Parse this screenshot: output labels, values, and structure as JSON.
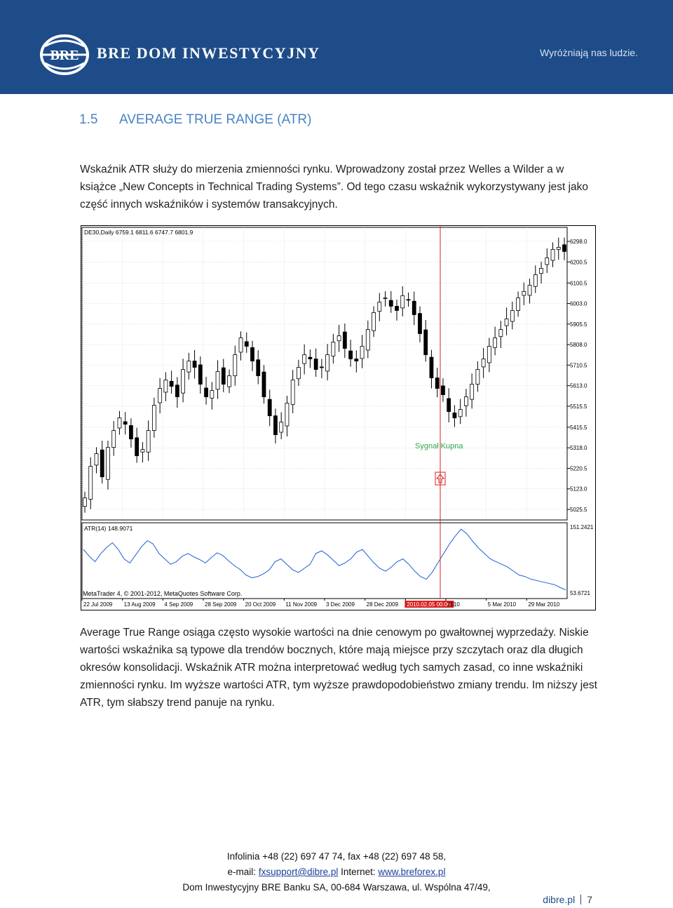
{
  "header": {
    "brand": "BRE DOM INWESTYCYJNY",
    "logo_text": "BRE",
    "tagline": "Wyróżniają nas ludzie."
  },
  "section": {
    "number": "1.5",
    "title": "AVERAGE TRUE RANGE (ATR)"
  },
  "intro_paragraph": "Wskaźnik ATR służy do mierzenia zmienności rynku. Wprowadzony został przez Welles a Wilder a w książce „New Concepts in Technical Trading Systems”. Od tego czasu wskaźnik wykorzystywany jest jako część innych wskaźników i systemów transakcyjnych.",
  "chart_data": {
    "type": "line",
    "title": "DE30,Daily  6759.1 6811.6 6747.7 6801.9",
    "price_axis_ticks": [
      "6298.0",
      "6200.5",
      "6100.5",
      "6003.0",
      "5905.5",
      "5808.0",
      "5710.5",
      "5613.0",
      "5515.5",
      "5415.5",
      "5318.0",
      "5220.5",
      "5123.0",
      "5025.5"
    ],
    "price_ylim": [
      5025.5,
      6298.0
    ],
    "indicator_label": "ATR(14) 148.9071",
    "indicator_ticks": [
      "151.2421",
      "53.6721"
    ],
    "indicator_ylim": [
      53.6721,
      151.2421
    ],
    "x_ticks": [
      "22 Jul 2009",
      "13 Aug 2009",
      "4 Sep 2009",
      "28 Sep 2009",
      "20 Oct 2009",
      "11 Nov 2009",
      "3 Dec 2009",
      "28 Dec 2009",
      "2010.02.05 00:00",
      "2010",
      "5 Mar 2010",
      "29 Mar 2010"
    ],
    "annotation": "Sygnał Kupna",
    "copyright": "MetaTrader 4, © 2001-2012, MetaQuotes Software Corp.",
    "grid": true,
    "series": [
      {
        "name": "DE30,Daily",
        "values": [
          5080,
          5230,
          5290,
          5180,
          5320,
          5400,
          5460,
          5430,
          5360,
          5280,
          5310,
          5400,
          5520,
          5600,
          5640,
          5610,
          5560,
          5690,
          5730,
          5700,
          5620,
          5560,
          5590,
          5680,
          5620,
          5660,
          5760,
          5840,
          5800,
          5730,
          5660,
          5560,
          5470,
          5380,
          5440,
          5530,
          5640,
          5700,
          5760,
          5740,
          5690,
          5700,
          5760,
          5820,
          5850,
          5790,
          5740,
          5730,
          5800,
          5880,
          5960,
          6010,
          6030,
          5990,
          5970,
          6040,
          6020,
          5950,
          5860,
          5760,
          5650,
          5600,
          5570,
          5490,
          5460,
          5500,
          5560,
          5620,
          5690,
          5740,
          5800,
          5840,
          5880,
          5930,
          5970,
          6030,
          6060,
          6090,
          6140,
          6170,
          6220,
          6260,
          6270,
          6250
        ]
      },
      {
        "name": "ATR(14)",
        "values": [
          118,
          108,
          100,
          112,
          121,
          128,
          118,
          104,
          98,
          110,
          122,
          131,
          126,
          112,
          104,
          96,
          100,
          108,
          112,
          107,
          103,
          98,
          106,
          113,
          109,
          101,
          94,
          88,
          80,
          76,
          78,
          82,
          88,
          100,
          104,
          96,
          88,
          84,
          90,
          96,
          112,
          116,
          110,
          102,
          94,
          98,
          104,
          114,
          118,
          108,
          98,
          90,
          86,
          92,
          100,
          104,
          96,
          86,
          78,
          74,
          84,
          98,
          112,
          126,
          138,
          148,
          141,
          130,
          120,
          112,
          104,
          100,
          96,
          92,
          86,
          80,
          78,
          74,
          72,
          70,
          68,
          66,
          62,
          58
        ]
      }
    ]
  },
  "body_paragraph": "Average True Range osiąga często wysokie wartości na dnie cenowym po gwałtownej wyprzedaży. Niskie wartości wskaźnika są typowe dla trendów bocznych, które mają miejsce przy szczytach oraz dla długich okresów konsolidacji. Wskaźnik ATR można interpretować według tych samych zasad, co inne wskaźniki zmienności rynku. Im wyższe wartości ATR, tym wyższe prawdopodobieństwo zmiany trendu. Im niższy jest ATR, tym słabszy trend panuje na rynku.",
  "footer": {
    "line1": "Infolinia +48 (22) 697 47 74, fax +48 (22) 697 48 58,",
    "email_label": "e-mail:",
    "email": "fxsupport@dibre.pl",
    "internet_label": "Internet:",
    "website": "www.breforex.pl",
    "line3": "Dom Inwestycyjny BRE Banku SA, 00-684 Warszawa, ul. Wspólna 47/49,"
  },
  "page": {
    "site": "dibre.pl",
    "number": "7"
  },
  "colors": {
    "header_bg": "#1d4c88",
    "heading": "#4a83c4",
    "signal": "#d82020",
    "annotation": "#2ea84a"
  }
}
